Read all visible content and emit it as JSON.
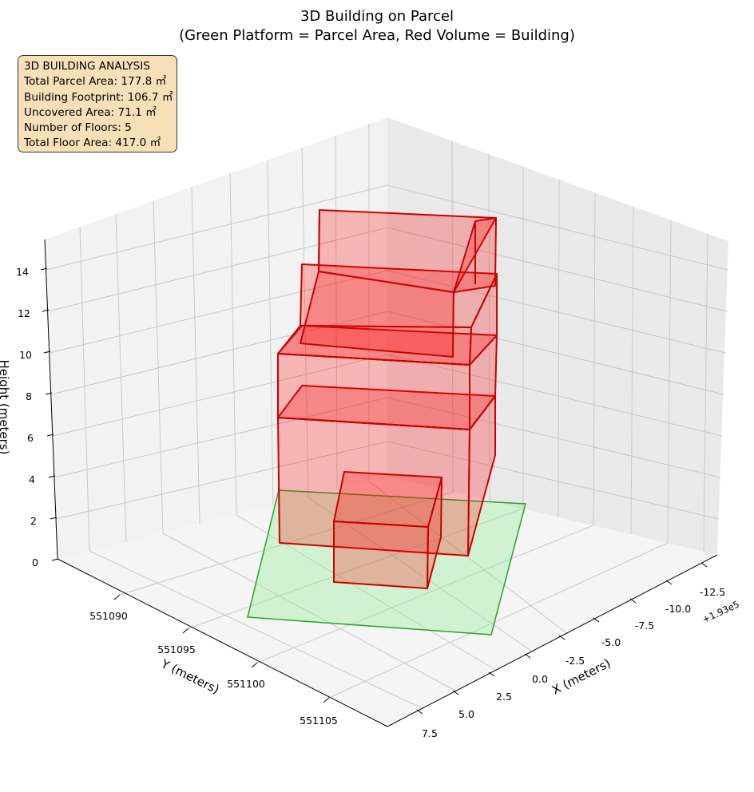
{
  "chart_data": {
    "type": "3d-bar",
    "title": "3D Building on Parcel",
    "subtitle": "(Green Platform = Parcel Area, Red Volume = Building)",
    "xlabel": "X (meters)",
    "ylabel": "Y (meters)",
    "zlabel": "Height (meters)",
    "x_offset_label": "+1.93e5",
    "x_ticks": [
      "-12.5",
      "-10.0",
      "-7.5",
      "-5.0",
      "-2.5",
      "0.0",
      "2.5",
      "5.0",
      "7.5"
    ],
    "y_ticks": [
      "551090",
      "551095",
      "551100",
      "551105"
    ],
    "z_ticks": [
      "0",
      "2",
      "4",
      "6",
      "8",
      "10",
      "12",
      "14"
    ],
    "grid": true,
    "colors": {
      "parcel_fill": "#90ee90",
      "parcel_edge": "#2ca02c",
      "building_fill": "#ff0000",
      "building_edge": "#cc0000",
      "info_box": "#f7dfb8"
    },
    "series": [
      {
        "name": "Green Platform = Parcel Area"
      },
      {
        "name": "Red Volume = Building"
      }
    ],
    "legend": "none"
  },
  "info_box": {
    "lines": [
      "3D BUILDING ANALYSIS",
      "Total Parcel Area: 177.8 ㎡",
      "Building Footprint: 106.7 ㎡",
      "Uncovered Area: 71.1 ㎡",
      "Number of Floors: 5",
      "Total Floor Area: 417.0 ㎡"
    ]
  }
}
